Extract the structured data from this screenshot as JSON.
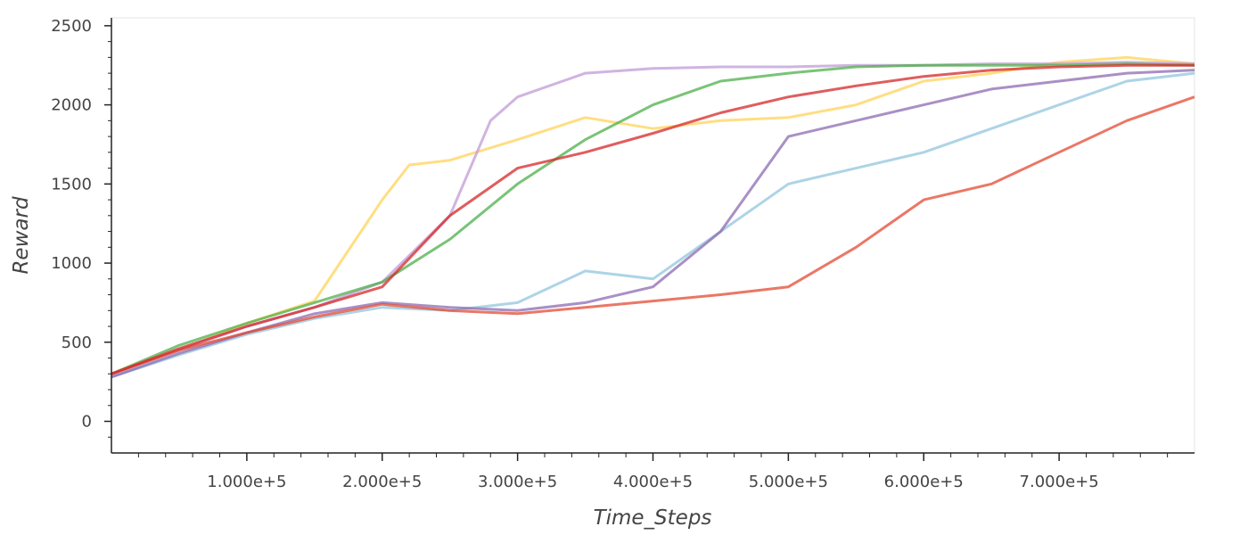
{
  "chart_data": {
    "type": "line",
    "title": "",
    "xlabel": "Time_Steps",
    "ylabel": "Reward",
    "xlim": [
      0,
      800000
    ],
    "ylim": [
      -200,
      2550
    ],
    "x_ticks": [
      100000,
      200000,
      300000,
      400000,
      500000,
      600000,
      700000
    ],
    "x_tick_labels": [
      "1.000e+5",
      "2.000e+5",
      "3.000e+5",
      "4.000e+5",
      "5.000e+5",
      "6.000e+5",
      "7.000e+5"
    ],
    "y_ticks": [
      0,
      500,
      1000,
      1500,
      2000,
      2500
    ],
    "y_tick_labels": [
      "0",
      "500",
      "1000",
      "1500",
      "2000",
      "2500"
    ],
    "grid": false,
    "legend": "none",
    "series": [
      {
        "color": "#ffd35a",
        "x": [
          0,
          50000,
          100000,
          150000,
          200000,
          220000,
          250000,
          300000,
          350000,
          400000,
          450000,
          500000,
          550000,
          600000,
          650000,
          700000,
          750000,
          800000
        ],
        "values": [
          300,
          450,
          620,
          760,
          1400,
          1620,
          1650,
          1780,
          1920,
          1850,
          1900,
          1920,
          2000,
          2150,
          2200,
          2270,
          2300,
          2260
        ]
      },
      {
        "color": "#c09bd6",
        "x": [
          0,
          50000,
          100000,
          150000,
          200000,
          250000,
          280000,
          300000,
          350000,
          400000,
          450000,
          500000,
          550000,
          600000,
          650000,
          700000,
          750000,
          800000
        ],
        "values": [
          300,
          450,
          600,
          720,
          880,
          1300,
          1900,
          2050,
          2200,
          2230,
          2240,
          2240,
          2250,
          2250,
          2260,
          2260,
          2270,
          2260
        ]
      },
      {
        "color": "#4daf4a",
        "x": [
          0,
          50000,
          100000,
          150000,
          200000,
          250000,
          300000,
          350000,
          400000,
          450000,
          500000,
          550000,
          600000,
          650000,
          700000,
          750000,
          800000
        ],
        "values": [
          300,
          480,
          620,
          750,
          880,
          1150,
          1500,
          1780,
          2000,
          2150,
          2200,
          2240,
          2250,
          2250,
          2250,
          2260,
          2250
        ]
      },
      {
        "color": "#92c5de",
        "x": [
          0,
          50000,
          100000,
          150000,
          200000,
          250000,
          300000,
          350000,
          400000,
          450000,
          500000,
          550000,
          600000,
          650000,
          700000,
          750000,
          800000
        ],
        "values": [
          280,
          420,
          550,
          650,
          720,
          700,
          750,
          950,
          900,
          1200,
          1500,
          1600,
          1700,
          1850,
          2000,
          2150,
          2200
        ]
      },
      {
        "color": "#8c6bb1",
        "x": [
          0,
          50000,
          100000,
          150000,
          200000,
          250000,
          300000,
          350000,
          400000,
          450000,
          500000,
          550000,
          600000,
          650000,
          700000,
          750000,
          800000
        ],
        "values": [
          280,
          430,
          560,
          680,
          750,
          720,
          700,
          750,
          850,
          1200,
          1800,
          1900,
          2000,
          2100,
          2150,
          2200,
          2220
        ]
      },
      {
        "color": "#e34a33",
        "x": [
          0,
          50000,
          100000,
          150000,
          200000,
          250000,
          300000,
          350000,
          400000,
          450000,
          500000,
          550000,
          600000,
          650000,
          700000,
          750000,
          800000
        ],
        "values": [
          300,
          450,
          560,
          660,
          740,
          700,
          680,
          720,
          760,
          800,
          850,
          1100,
          1400,
          1500,
          1700,
          1900,
          2050
        ]
      },
      {
        "color": "#d62728",
        "x": [
          0,
          50000,
          100000,
          150000,
          200000,
          250000,
          300000,
          350000,
          400000,
          450000,
          500000,
          550000,
          600000,
          650000,
          700000,
          750000,
          800000
        ],
        "values": [
          300,
          460,
          600,
          720,
          850,
          1300,
          1600,
          1700,
          1820,
          1950,
          2050,
          2120,
          2180,
          2220,
          2240,
          2250,
          2250
        ]
      }
    ]
  }
}
